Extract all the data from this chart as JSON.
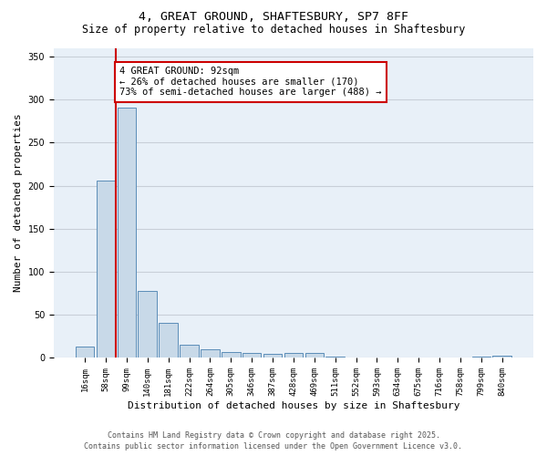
{
  "title_line1": "4, GREAT GROUND, SHAFTESBURY, SP7 8FF",
  "title_line2": "Size of property relative to detached houses in Shaftesbury",
  "xlabel": "Distribution of detached houses by size in Shaftesbury",
  "ylabel": "Number of detached properties",
  "categories": [
    "16sqm",
    "58sqm",
    "99sqm",
    "140sqm",
    "181sqm",
    "222sqm",
    "264sqm",
    "305sqm",
    "346sqm",
    "387sqm",
    "428sqm",
    "469sqm",
    "511sqm",
    "552sqm",
    "593sqm",
    "634sqm",
    "675sqm",
    "716sqm",
    "758sqm",
    "799sqm",
    "840sqm"
  ],
  "values": [
    13,
    206,
    291,
    78,
    41,
    15,
    10,
    7,
    6,
    5,
    6,
    6,
    2,
    1,
    0,
    0,
    0,
    0,
    0,
    2,
    3
  ],
  "bar_color": "#c8d9e8",
  "bar_edge_color": "#5b8db8",
  "red_line_index": 2,
  "annotation_text": "4 GREAT GROUND: 92sqm\n← 26% of detached houses are smaller (170)\n73% of semi-detached houses are larger (488) →",
  "annotation_box_color": "#ffffff",
  "annotation_box_edge": "#cc0000",
  "ylim": [
    0,
    360
  ],
  "yticks": [
    0,
    50,
    100,
    150,
    200,
    250,
    300,
    350
  ],
  "grid_color": "#c8cfd8",
  "bg_color": "#e8f0f8",
  "footer_line1": "Contains HM Land Registry data © Crown copyright and database right 2025.",
  "footer_line2": "Contains public sector information licensed under the Open Government Licence v3.0.",
  "red_line_color": "#cc0000",
  "title_fontsize": 9.5,
  "subtitle_fontsize": 8.5,
  "tick_fontsize": 6.5,
  "label_fontsize": 8,
  "footer_fontsize": 6,
  "annot_fontsize": 7.5
}
